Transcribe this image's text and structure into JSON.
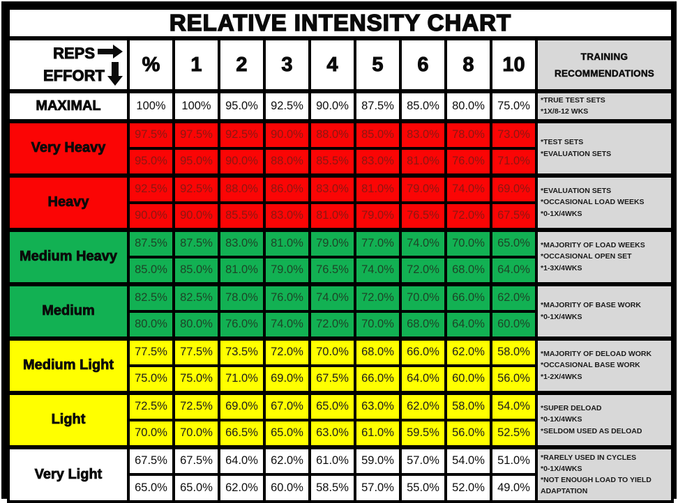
{
  "title": "RELATIVE INTENSITY CHART",
  "header": {
    "reps_label": "REPS",
    "effort_label": "EFFORT",
    "recommendations_line1": "TRAINING",
    "recommendations_line2": "RECOMMENDATIONS",
    "right_arrow_icon": "right-arrow",
    "down_arrow_icon": "down-arrow"
  },
  "colors": {
    "red": "#fb0505",
    "green": "#12b153",
    "yellow": "#ffff00",
    "gray": "#d8d8d8",
    "red_text": "#8c1712",
    "green_text": "#1d4527",
    "border": "#000000"
  },
  "chart_data": {
    "type": "table",
    "title": "RELATIVE INTENSITY CHART",
    "columns": [
      "%",
      "1",
      "2",
      "3",
      "4",
      "5",
      "6",
      "8",
      "10"
    ],
    "effort_groups": [
      {
        "label": "MAXIMAL",
        "color": "white",
        "rows": [
          [
            "100%",
            "100%",
            "95.0%",
            "92.5%",
            "90.0%",
            "87.5%",
            "85.0%",
            "80.0%",
            "75.0%"
          ]
        ],
        "recommendations": [
          "*TRUE TEST SETS",
          "*1X/8-12 WKS"
        ]
      },
      {
        "label": "Very Heavy",
        "color": "red",
        "rows": [
          [
            "97.5%",
            "97.5%",
            "92.5%",
            "90.0%",
            "88.0%",
            "85.0%",
            "83.0%",
            "78.0%",
            "73.0%"
          ],
          [
            "95.0%",
            "95.0%",
            "90.0%",
            "88.0%",
            "85.5%",
            "83.0%",
            "81.0%",
            "76.0%",
            "71.0%"
          ]
        ],
        "recommendations": [
          "*TEST SETS",
          "*EVALUATION SETS"
        ]
      },
      {
        "label": "Heavy",
        "color": "red",
        "rows": [
          [
            "92.5%",
            "92.5%",
            "88.0%",
            "86.0%",
            "83.0%",
            "81.0%",
            "79.0%",
            "74.0%",
            "69.0%"
          ],
          [
            "90.0%",
            "90.0%",
            "85.5%",
            "83.0%",
            "81.0%",
            "79.0%",
            "76.5%",
            "72.0%",
            "67.5%"
          ]
        ],
        "recommendations": [
          "*EVALUATION SETS",
          "*OCCASIONAL LOAD WEEKS",
          "*0-1X/4WKS"
        ]
      },
      {
        "label": "Medium Heavy",
        "color": "green",
        "rows": [
          [
            "87.5%",
            "87.5%",
            "83.0%",
            "81.0%",
            "79.0%",
            "77.0%",
            "74.0%",
            "70.0%",
            "65.0%"
          ],
          [
            "85.0%",
            "85.0%",
            "81.0%",
            "79.0%",
            "76.5%",
            "74.0%",
            "72.0%",
            "68.0%",
            "64.0%"
          ]
        ],
        "recommendations": [
          "*MAJORITY OF LOAD WEEKS",
          "*OCCASIONAL OPEN SET",
          "*1-3X/4WKS"
        ]
      },
      {
        "label": "Medium",
        "color": "green",
        "rows": [
          [
            "82.5%",
            "82.5%",
            "78.0%",
            "76.0%",
            "74.0%",
            "72.0%",
            "70.0%",
            "66.0%",
            "62.0%"
          ],
          [
            "80.0%",
            "80.0%",
            "76.0%",
            "74.0%",
            "72.0%",
            "70.0%",
            "68.0%",
            "64.0%",
            "60.0%"
          ]
        ],
        "recommendations": [
          "*MAJORITY OF BASE WORK",
          "*0-1X/4WKS"
        ]
      },
      {
        "label": "Medium Light",
        "color": "yellow",
        "rows": [
          [
            "77.5%",
            "77.5%",
            "73.5%",
            "72.0%",
            "70.0%",
            "68.0%",
            "66.0%",
            "62.0%",
            "58.0%"
          ],
          [
            "75.0%",
            "75.0%",
            "71.0%",
            "69.0%",
            "67.5%",
            "66.0%",
            "64.0%",
            "60.0%",
            "56.0%"
          ]
        ],
        "recommendations": [
          "*MAJORITY OF DELOAD WORK",
          "*OCCASIONAL BASE WORK",
          "*1-2X/4WKS"
        ]
      },
      {
        "label": "Light",
        "color": "yellow",
        "rows": [
          [
            "72.5%",
            "72.5%",
            "69.0%",
            "67.0%",
            "65.0%",
            "63.0%",
            "62.0%",
            "58.0%",
            "54.0%"
          ],
          [
            "70.0%",
            "70.0%",
            "66.5%",
            "65.0%",
            "63.0%",
            "61.0%",
            "59.5%",
            "56.0%",
            "52.5%"
          ]
        ],
        "recommendations": [
          "*SUPER DELOAD",
          "*0-1X/4WKS",
          "*SELDOM USED AS DELOAD"
        ]
      },
      {
        "label": "Very Light",
        "color": "white",
        "rows": [
          [
            "67.5%",
            "67.5%",
            "64.0%",
            "62.0%",
            "61.0%",
            "59.0%",
            "57.0%",
            "54.0%",
            "51.0%"
          ],
          [
            "65.0%",
            "65.0%",
            "62.0%",
            "60.0%",
            "58.5%",
            "57.0%",
            "55.0%",
            "52.0%",
            "49.0%"
          ]
        ],
        "recommendations": [
          "*RARELY USED IN CYCLES",
          "*0-1X/4WKS",
          "*NOT ENOUGH LOAD TO YIELD ADAPTATION"
        ]
      }
    ]
  }
}
